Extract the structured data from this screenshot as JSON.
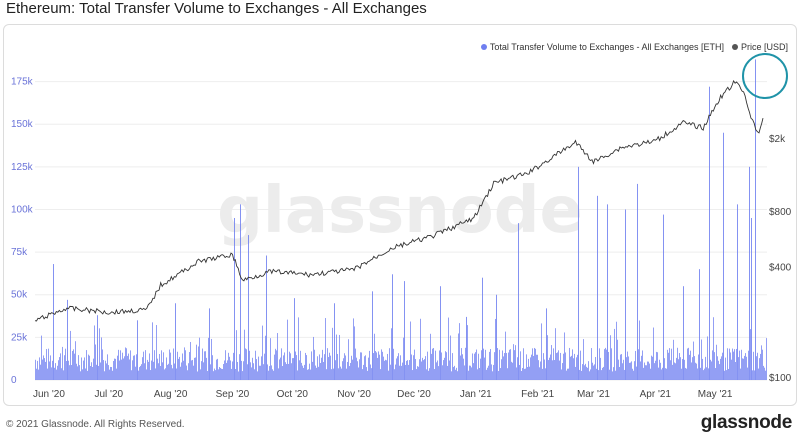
{
  "title": "Ethereum: Total Transfer Volume to Exchanges - All Exchanges",
  "legend": {
    "volume_label": "Total Transfer Volume to Exchanges - All Exchanges [ETH]",
    "price_label": "Price [USD]"
  },
  "watermark": "glassnode",
  "footer": {
    "copyright": "© 2021 Glassnode. All Rights Reserved.",
    "brand": "glassnode"
  },
  "colors": {
    "volume": "#6f7ff0",
    "price": "#333333",
    "highlight_circle": "#1f93a8",
    "title": "#222222"
  },
  "chart_data": {
    "type": "bar",
    "title": "Ethereum: Total Transfer Volume to Exchanges - All Exchanges",
    "x_ticks": [
      "Jun '20",
      "Jul '20",
      "Aug '20",
      "Sep '20",
      "Oct '20",
      "Nov '20",
      "Dec '20",
      "Jan '21",
      "Feb '21",
      "Mar '21",
      "Apr '21",
      "May '21"
    ],
    "y_left_ticks": [
      "0",
      "25k",
      "50k",
      "75k",
      "100k",
      "125k",
      "150k",
      "175k"
    ],
    "y_left_range": [
      0,
      190000
    ],
    "y_right_ticks": [
      "$100",
      "$400",
      "$800",
      "$2k"
    ],
    "y_right_scale": "log",
    "x_range": [
      "2020-05-25",
      "2021-05-27"
    ],
    "grid": true,
    "legend_position": "top-right",
    "series": [
      {
        "name": "Total Transfer Volume to Exchanges - All Exchanges [ETH]",
        "type": "bar",
        "axis": "left",
        "baseline_range": [
          5000,
          25000
        ],
        "spikes": [
          {
            "date": "2020-06-03",
            "value": 68000
          },
          {
            "date": "2020-06-10",
            "value": 47000
          },
          {
            "date": "2020-06-25",
            "value": 38000
          },
          {
            "date": "2020-07-15",
            "value": 35000
          },
          {
            "date": "2020-08-03",
            "value": 45000
          },
          {
            "date": "2020-08-20",
            "value": 42000
          },
          {
            "date": "2020-09-02",
            "value": 95000
          },
          {
            "date": "2020-09-05",
            "value": 103000
          },
          {
            "date": "2020-09-09",
            "value": 85000
          },
          {
            "date": "2020-09-18",
            "value": 73000
          },
          {
            "date": "2020-10-02",
            "value": 48000
          },
          {
            "date": "2020-10-22",
            "value": 45000
          },
          {
            "date": "2020-11-10",
            "value": 52000
          },
          {
            "date": "2020-11-20",
            "value": 62000
          },
          {
            "date": "2020-11-26",
            "value": 58000
          },
          {
            "date": "2020-12-14",
            "value": 55000
          },
          {
            "date": "2020-12-27",
            "value": 37000
          },
          {
            "date": "2021-01-04",
            "value": 60000
          },
          {
            "date": "2021-01-11",
            "value": 50000
          },
          {
            "date": "2021-01-22",
            "value": 92000
          },
          {
            "date": "2021-02-05",
            "value": 42000
          },
          {
            "date": "2021-02-21",
            "value": 125000
          },
          {
            "date": "2021-03-03",
            "value": 108000
          },
          {
            "date": "2021-03-08",
            "value": 103000
          },
          {
            "date": "2021-03-17",
            "value": 100000
          },
          {
            "date": "2021-03-23",
            "value": 115000
          },
          {
            "date": "2021-04-05",
            "value": 97000
          },
          {
            "date": "2021-04-15",
            "value": 55000
          },
          {
            "date": "2021-04-23",
            "value": 65000
          },
          {
            "date": "2021-04-28",
            "value": 172000
          },
          {
            "date": "2021-05-05",
            "value": 145000
          },
          {
            "date": "2021-05-12",
            "value": 103000
          },
          {
            "date": "2021-05-18",
            "value": 125000
          },
          {
            "date": "2021-05-19",
            "value": 95000
          },
          {
            "date": "2021-05-21",
            "value": 188000
          }
        ]
      },
      {
        "name": "Price [USD]",
        "type": "line",
        "axis": "right",
        "points": [
          {
            "date": "2020-05-25",
            "value": 205
          },
          {
            "date": "2020-06-10",
            "value": 240
          },
          {
            "date": "2020-07-01",
            "value": 228
          },
          {
            "date": "2020-07-20",
            "value": 235
          },
          {
            "date": "2020-07-27",
            "value": 320
          },
          {
            "date": "2020-08-15",
            "value": 430
          },
          {
            "date": "2020-09-01",
            "value": 470
          },
          {
            "date": "2020-09-06",
            "value": 340
          },
          {
            "date": "2020-09-20",
            "value": 380
          },
          {
            "date": "2020-10-10",
            "value": 365
          },
          {
            "date": "2020-11-01",
            "value": 390
          },
          {
            "date": "2020-11-20",
            "value": 510
          },
          {
            "date": "2020-12-10",
            "value": 590
          },
          {
            "date": "2020-12-31",
            "value": 740
          },
          {
            "date": "2021-01-10",
            "value": 1150
          },
          {
            "date": "2021-01-27",
            "value": 1300
          },
          {
            "date": "2021-02-20",
            "value": 1920
          },
          {
            "date": "2021-03-01",
            "value": 1500
          },
          {
            "date": "2021-03-15",
            "value": 1800
          },
          {
            "date": "2021-04-01",
            "value": 1950
          },
          {
            "date": "2021-04-15",
            "value": 2450
          },
          {
            "date": "2021-04-25",
            "value": 2300
          },
          {
            "date": "2021-05-03",
            "value": 3300
          },
          {
            "date": "2021-05-11",
            "value": 4100
          },
          {
            "date": "2021-05-16",
            "value": 3500
          },
          {
            "date": "2021-05-19",
            "value": 2600
          },
          {
            "date": "2021-05-23",
            "value": 2100
          },
          {
            "date": "2021-05-25",
            "value": 2600
          }
        ]
      }
    ]
  }
}
